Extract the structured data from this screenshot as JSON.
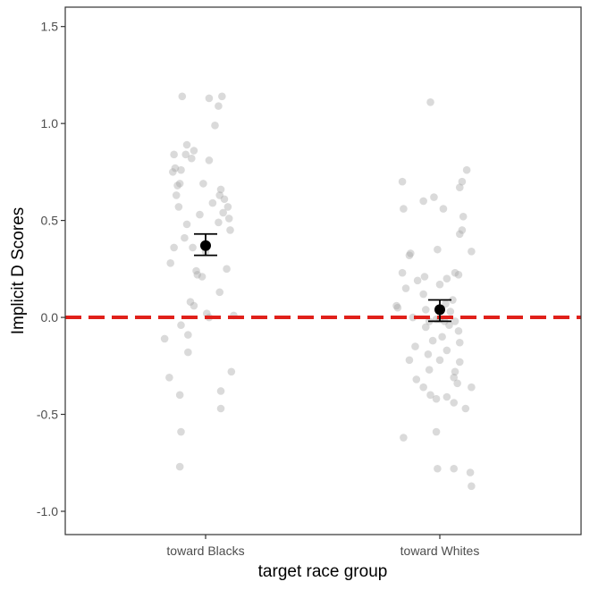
{
  "chart_data": {
    "type": "scatter",
    "title": "",
    "xlabel": "target race group",
    "ylabel": "Implicit D Scores",
    "categories": [
      "toward Blacks",
      "toward Whites"
    ],
    "ylim": [
      -1.12,
      1.6
    ],
    "yticks": [
      1.5,
      1.0,
      0.5,
      0.0,
      -0.5,
      -1.0
    ],
    "ytick_labels": [
      "1.5",
      "1.0",
      "0.5",
      "0.0",
      "-0.5",
      "-1.0"
    ],
    "grid": false,
    "reference_line": {
      "y": 0.0,
      "style": "dashed",
      "color": "#e0201a"
    },
    "colors": {
      "points": "#a6a6a6",
      "summary": "#000000",
      "axis": "#333333"
    },
    "series": [
      {
        "category": "toward Blacks",
        "mean": 0.37,
        "ci_low": 0.32,
        "ci_high": 0.43,
        "points": [
          {
            "x": -0.2,
            "y": 1.14
          },
          {
            "x": 0.03,
            "y": 1.13
          },
          {
            "x": 0.14,
            "y": 1.14
          },
          {
            "x": 0.11,
            "y": 1.09
          },
          {
            "x": 0.08,
            "y": 0.99
          },
          {
            "x": -0.16,
            "y": 0.89
          },
          {
            "x": -0.1,
            "y": 0.86
          },
          {
            "x": -0.17,
            "y": 0.84
          },
          {
            "x": -0.27,
            "y": 0.84
          },
          {
            "x": -0.12,
            "y": 0.82
          },
          {
            "x": -0.26,
            "y": 0.77
          },
          {
            "x": -0.21,
            "y": 0.76
          },
          {
            "x": 0.03,
            "y": 0.81
          },
          {
            "x": -0.28,
            "y": 0.75
          },
          {
            "x": -0.22,
            "y": 0.69
          },
          {
            "x": -0.24,
            "y": 0.68
          },
          {
            "x": -0.02,
            "y": 0.69
          },
          {
            "x": -0.25,
            "y": 0.63
          },
          {
            "x": 0.13,
            "y": 0.66
          },
          {
            "x": 0.12,
            "y": 0.63
          },
          {
            "x": 0.16,
            "y": 0.61
          },
          {
            "x": 0.06,
            "y": 0.59
          },
          {
            "x": -0.23,
            "y": 0.57
          },
          {
            "x": 0.19,
            "y": 0.57
          },
          {
            "x": 0.15,
            "y": 0.54
          },
          {
            "x": -0.05,
            "y": 0.53
          },
          {
            "x": 0.2,
            "y": 0.51
          },
          {
            "x": 0.11,
            "y": 0.49
          },
          {
            "x": -0.16,
            "y": 0.48
          },
          {
            "x": 0.21,
            "y": 0.45
          },
          {
            "x": -0.18,
            "y": 0.41
          },
          {
            "x": -0.11,
            "y": 0.36
          },
          {
            "x": -0.27,
            "y": 0.36
          },
          {
            "x": 0.0,
            "y": 0.34
          },
          {
            "x": -0.3,
            "y": 0.28
          },
          {
            "x": 0.18,
            "y": 0.25
          },
          {
            "x": -0.08,
            "y": 0.24
          },
          {
            "x": -0.07,
            "y": 0.22
          },
          {
            "x": -0.03,
            "y": 0.21
          },
          {
            "x": 0.12,
            "y": 0.13
          },
          {
            "x": -0.13,
            "y": 0.08
          },
          {
            "x": -0.1,
            "y": 0.06
          },
          {
            "x": 0.01,
            "y": 0.02
          },
          {
            "x": 0.24,
            "y": 0.01
          },
          {
            "x": 0.03,
            "y": 0.0
          },
          {
            "x": -0.21,
            "y": -0.04
          },
          {
            "x": -0.15,
            "y": -0.09
          },
          {
            "x": -0.35,
            "y": -0.11
          },
          {
            "x": -0.15,
            "y": -0.18
          },
          {
            "x": 0.22,
            "y": -0.28
          },
          {
            "x": -0.31,
            "y": -0.31
          },
          {
            "x": 0.13,
            "y": -0.38
          },
          {
            "x": -0.22,
            "y": -0.4
          },
          {
            "x": 0.13,
            "y": -0.47
          },
          {
            "x": -0.21,
            "y": -0.59
          },
          {
            "x": -0.22,
            "y": -0.77
          }
        ]
      },
      {
        "category": "toward Whites",
        "mean": 0.04,
        "ci_low": -0.02,
        "ci_high": 0.09,
        "points": [
          {
            "x": -0.08,
            "y": 1.11
          },
          {
            "x": 0.23,
            "y": 0.76
          },
          {
            "x": 0.19,
            "y": 0.7
          },
          {
            "x": 0.17,
            "y": 0.67
          },
          {
            "x": -0.32,
            "y": 0.7
          },
          {
            "x": -0.05,
            "y": 0.62
          },
          {
            "x": -0.14,
            "y": 0.6
          },
          {
            "x": 0.03,
            "y": 0.56
          },
          {
            "x": -0.31,
            "y": 0.56
          },
          {
            "x": 0.2,
            "y": 0.52
          },
          {
            "x": 0.19,
            "y": 0.45
          },
          {
            "x": 0.17,
            "y": 0.43
          },
          {
            "x": -0.02,
            "y": 0.35
          },
          {
            "x": 0.27,
            "y": 0.34
          },
          {
            "x": -0.25,
            "y": 0.33
          },
          {
            "x": -0.26,
            "y": 0.32
          },
          {
            "x": -0.32,
            "y": 0.23
          },
          {
            "x": 0.13,
            "y": 0.23
          },
          {
            "x": 0.16,
            "y": 0.22
          },
          {
            "x": -0.13,
            "y": 0.21
          },
          {
            "x": 0.06,
            "y": 0.2
          },
          {
            "x": -0.19,
            "y": 0.19
          },
          {
            "x": 0.0,
            "y": 0.17
          },
          {
            "x": -0.29,
            "y": 0.15
          },
          {
            "x": -0.14,
            "y": 0.12
          },
          {
            "x": 0.11,
            "y": 0.09
          },
          {
            "x": 0.05,
            "y": 0.07
          },
          {
            "x": -0.37,
            "y": 0.06
          },
          {
            "x": -0.36,
            "y": 0.05
          },
          {
            "x": -0.12,
            "y": 0.04
          },
          {
            "x": 0.09,
            "y": 0.03
          },
          {
            "x": -0.23,
            "y": 0.0
          },
          {
            "x": -0.03,
            "y": -0.01
          },
          {
            "x": 0.0,
            "y": -0.01
          },
          {
            "x": 0.04,
            "y": -0.02
          },
          {
            "x": 0.13,
            "y": -0.02
          },
          {
            "x": -0.09,
            "y": -0.02
          },
          {
            "x": 0.08,
            "y": -0.04
          },
          {
            "x": -0.12,
            "y": -0.05
          },
          {
            "x": 0.16,
            "y": -0.07
          },
          {
            "x": 0.02,
            "y": -0.1
          },
          {
            "x": -0.06,
            "y": -0.12
          },
          {
            "x": 0.17,
            "y": -0.13
          },
          {
            "x": -0.21,
            "y": -0.15
          },
          {
            "x": 0.06,
            "y": -0.17
          },
          {
            "x": -0.1,
            "y": -0.19
          },
          {
            "x": 0.0,
            "y": -0.22
          },
          {
            "x": -0.26,
            "y": -0.22
          },
          {
            "x": 0.17,
            "y": -0.23
          },
          {
            "x": -0.09,
            "y": -0.27
          },
          {
            "x": 0.13,
            "y": -0.28
          },
          {
            "x": 0.12,
            "y": -0.31
          },
          {
            "x": -0.2,
            "y": -0.32
          },
          {
            "x": 0.15,
            "y": -0.34
          },
          {
            "x": 0.27,
            "y": -0.36
          },
          {
            "x": -0.14,
            "y": -0.36
          },
          {
            "x": -0.08,
            "y": -0.4
          },
          {
            "x": 0.06,
            "y": -0.41
          },
          {
            "x": -0.03,
            "y": -0.42
          },
          {
            "x": 0.12,
            "y": -0.44
          },
          {
            "x": 0.22,
            "y": -0.47
          },
          {
            "x": -0.03,
            "y": -0.59
          },
          {
            "x": -0.31,
            "y": -0.62
          },
          {
            "x": -0.02,
            "y": -0.78
          },
          {
            "x": 0.12,
            "y": -0.78
          },
          {
            "x": 0.26,
            "y": -0.8
          },
          {
            "x": 0.27,
            "y": -0.87
          }
        ]
      }
    ]
  }
}
